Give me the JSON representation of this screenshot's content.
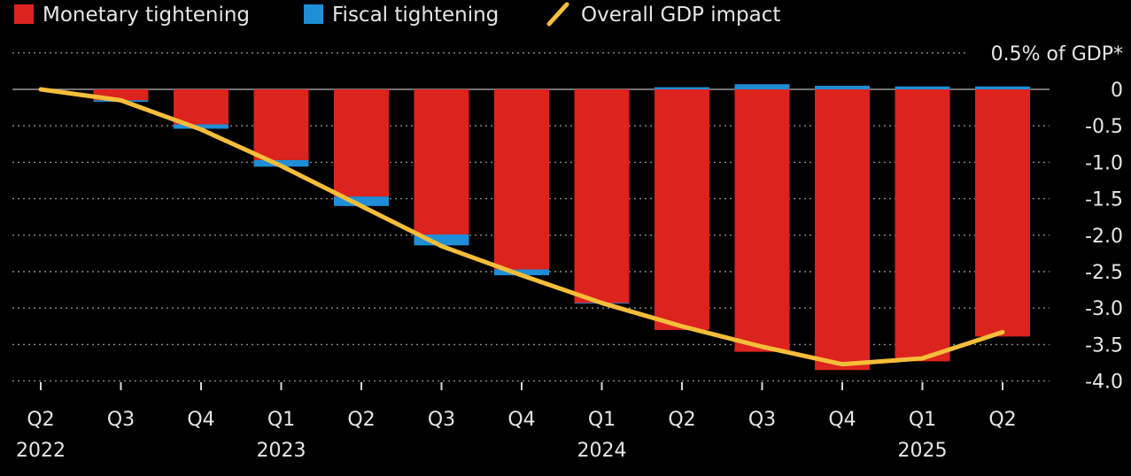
{
  "legend": {
    "monetary": "Monetary tightening",
    "fiscal": "Fiscal tightening",
    "overall": "Overall GDP impact"
  },
  "colors": {
    "monetary": "#dc231e",
    "fiscal": "#1f8ed6",
    "overall": "#f5be3a",
    "grid": "#8a8a8a",
    "background": "#000000"
  },
  "chart_data": {
    "type": "bar",
    "stacked": true,
    "unit_label": "0.5% of GDP*",
    "ylim": [
      -4.0,
      0.5
    ],
    "y_ticks": [
      0.5,
      0,
      -0.5,
      -1.0,
      -1.5,
      -2.0,
      -2.5,
      -3.0,
      -3.5,
      -4.0
    ],
    "y_tick_labels": [
      "0",
      "-0.5",
      "-1.0",
      "-1.5",
      "-2.0",
      "-2.5",
      "-3.0",
      "-3.5",
      "-4.0"
    ],
    "categories": [
      "Q2",
      "Q3",
      "Q4",
      "Q1",
      "Q2",
      "Q3",
      "Q4",
      "Q1",
      "Q2",
      "Q3",
      "Q4",
      "Q1",
      "Q2"
    ],
    "years": [
      {
        "label": "2022",
        "index": 0
      },
      {
        "label": "2023",
        "index": 3
      },
      {
        "label": "2024",
        "index": 7
      },
      {
        "label": "2025",
        "index": 11
      }
    ],
    "series": [
      {
        "name": "Monetary tightening",
        "key": "monetary",
        "values": [
          0,
          -0.15,
          -0.48,
          -0.97,
          -1.47,
          -1.99,
          -2.47,
          -2.93,
          -3.3,
          -3.6,
          -3.85,
          -3.73,
          -3.39
        ]
      },
      {
        "name": "Fiscal tightening",
        "key": "fiscal",
        "values": [
          0,
          -0.02,
          -0.06,
          -0.09,
          -0.13,
          -0.15,
          -0.08,
          -0.01,
          0.03,
          0.07,
          0.05,
          0.04,
          0.04
        ]
      },
      {
        "name": "Overall GDP impact",
        "key": "overall",
        "kind": "line",
        "values": [
          0,
          -0.15,
          -0.55,
          -1.05,
          -1.6,
          -2.15,
          -2.55,
          -2.93,
          -3.25,
          -3.53,
          -3.77,
          -3.69,
          -3.33
        ]
      }
    ]
  }
}
